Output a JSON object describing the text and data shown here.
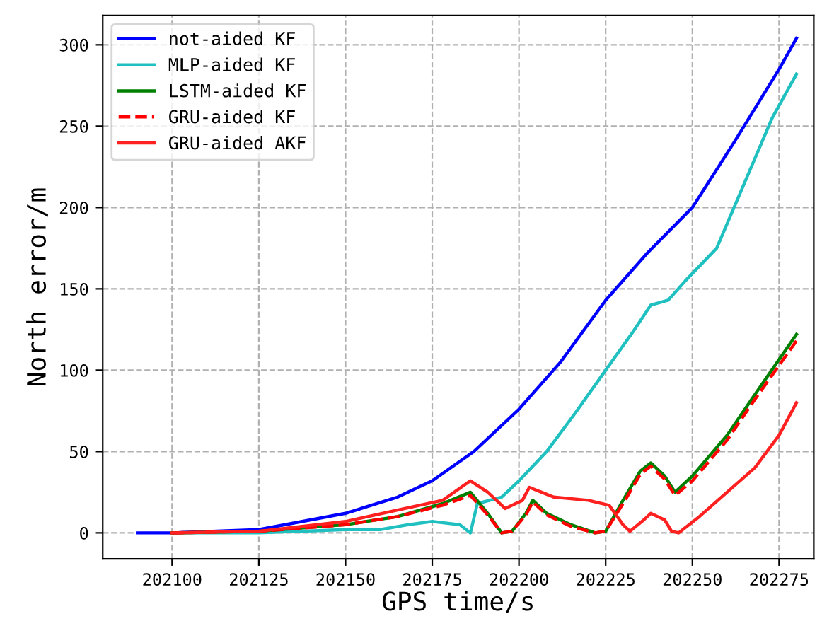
{
  "chart_data": {
    "type": "line",
    "xlabel": "GPS time/s",
    "ylabel": "North error/m",
    "xlim": [
      202080,
      202285
    ],
    "ylim": [
      -16,
      318
    ],
    "xticks": [
      202100,
      202125,
      202150,
      202175,
      202200,
      202225,
      202250,
      202275
    ],
    "yticks": [
      0,
      50,
      100,
      150,
      200,
      250,
      300
    ],
    "grid": true,
    "legend": "top left",
    "series": [
      {
        "name": "not-aided KF",
        "color": "#0000ff",
        "line_style": "solid",
        "x": [
          202090,
          202100,
          202125,
          202150,
          202165,
          202175,
          202187,
          202200,
          202212,
          202225,
          202237,
          202250,
          202262,
          202275,
          202280
        ],
        "values": [
          0,
          0,
          2,
          12,
          22,
          32,
          50,
          76,
          105,
          143,
          172,
          200,
          240,
          285,
          304
        ]
      },
      {
        "name": "MLP-aided KF",
        "color": "#20c0c0",
        "line_style": "solid",
        "x": [
          202100,
          202125,
          202150,
          202160,
          202168,
          202175,
          202183,
          202186,
          202188,
          202195,
          202200,
          202208,
          202216,
          202225,
          202233,
          202238,
          202243,
          202248,
          202257,
          202265,
          202273,
          202280
        ],
        "values": [
          0,
          0,
          2,
          2,
          5,
          7,
          5,
          0,
          18,
          22,
          32,
          50,
          73,
          100,
          124,
          140,
          143,
          155,
          175,
          215,
          255,
          282
        ]
      },
      {
        "name": "LSTM-aided KF",
        "color": "#008000",
        "line_style": "solid",
        "x": [
          202100,
          202125,
          202150,
          202165,
          202178,
          202186,
          202191,
          202195,
          202198,
          202202,
          202204,
          202208,
          202215,
          202222,
          202225,
          202230,
          202235,
          202238,
          202242,
          202245,
          202250,
          202260,
          202268,
          202280
        ],
        "values": [
          0,
          1,
          5,
          10,
          18,
          25,
          12,
          0,
          1,
          12,
          20,
          12,
          5,
          0,
          1,
          20,
          38,
          43,
          35,
          25,
          35,
          60,
          85,
          122
        ]
      },
      {
        "name": "GRU-aided KF",
        "color": "#ff0000",
        "line_style": "dashed",
        "x": [
          202100,
          202125,
          202150,
          202165,
          202178,
          202186,
          202191,
          202195,
          202198,
          202202,
          202204,
          202208,
          202215,
          202222,
          202225,
          202230,
          202235,
          202238,
          202242,
          202245,
          202250,
          202260,
          202268,
          202280
        ],
        "values": [
          0,
          1,
          5,
          10,
          17,
          23,
          11,
          0,
          1,
          11,
          19,
          11,
          4,
          0,
          1,
          18,
          36,
          41,
          33,
          23,
          32,
          57,
          82,
          118
        ]
      },
      {
        "name": "GRU-aided AKF",
        "color": "#ff2020",
        "line_style": "solid",
        "x": [
          202100,
          202125,
          202150,
          202165,
          202178,
          202186,
          202191,
          202196,
          202201,
          202203,
          202210,
          202220,
          202226,
          202230,
          202232,
          202236,
          202238,
          202242,
          202244,
          202246,
          202252,
          202260,
          202268,
          202275,
          202280
        ],
        "values": [
          0,
          1,
          7,
          14,
          20,
          32,
          25,
          15,
          20,
          28,
          22,
          20,
          17,
          5,
          1,
          8,
          12,
          8,
          1,
          0,
          10,
          25,
          40,
          60,
          80
        ]
      }
    ]
  }
}
